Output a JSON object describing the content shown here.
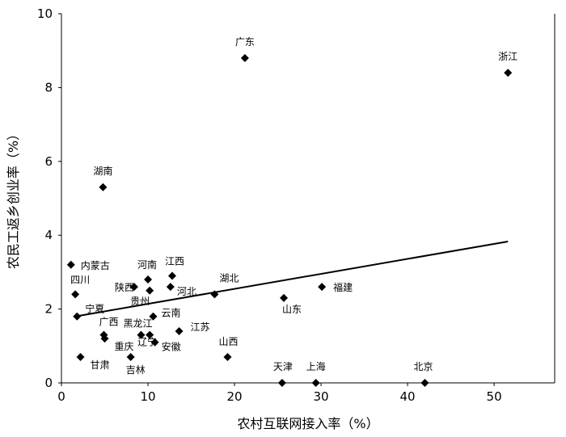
{
  "chart_data": {
    "type": "scatter",
    "xlabel": "农村互联网接入率（%）",
    "ylabel": "农民工返乡创业率（%）",
    "xlim": [
      0,
      57
    ],
    "ylim": [
      0,
      10
    ],
    "xticks": [
      0,
      10,
      20,
      30,
      40,
      50
    ],
    "yticks": [
      0,
      2,
      4,
      6,
      8,
      10
    ],
    "grid": false,
    "legend": "none",
    "points": [
      {
        "name": "广东",
        "x": 21.2,
        "y": 8.8
      },
      {
        "name": "浙江",
        "x": 51.6,
        "y": 8.4
      },
      {
        "name": "湖南",
        "x": 4.8,
        "y": 5.3
      },
      {
        "name": "内蒙古",
        "x": 1.1,
        "y": 3.2
      },
      {
        "name": "四川",
        "x": 1.6,
        "y": 2.4
      },
      {
        "name": "宁夏",
        "x": 1.8,
        "y": 1.8
      },
      {
        "name": "陕西",
        "x": 8.4,
        "y": 2.6
      },
      {
        "name": "河南",
        "x": 10.0,
        "y": 2.8
      },
      {
        "name": "江西",
        "x": 12.8,
        "y": 2.9
      },
      {
        "name": "贵州",
        "x": 10.2,
        "y": 2.5
      },
      {
        "name": "河北",
        "x": 12.6,
        "y": 2.6
      },
      {
        "name": "湖北",
        "x": 17.7,
        "y": 2.4
      },
      {
        "name": "云南",
        "x": 10.6,
        "y": 1.8
      },
      {
        "name": "广西",
        "x": 4.9,
        "y": 1.3
      },
      {
        "name": "重庆",
        "x": 5.0,
        "y": 1.2
      },
      {
        "name": "黑龙江",
        "x": 9.2,
        "y": 1.3
      },
      {
        "name": "辽宁",
        "x": 10.2,
        "y": 1.3
      },
      {
        "name": "安徽",
        "x": 10.8,
        "y": 1.1
      },
      {
        "name": "江苏",
        "x": 13.6,
        "y": 1.4
      },
      {
        "name": "甘肃",
        "x": 2.2,
        "y": 0.7
      },
      {
        "name": "吉林",
        "x": 8.0,
        "y": 0.7
      },
      {
        "name": "山西",
        "x": 19.2,
        "y": 0.7
      },
      {
        "name": "山东",
        "x": 25.7,
        "y": 2.3
      },
      {
        "name": "福建",
        "x": 30.1,
        "y": 2.6
      },
      {
        "name": "天津",
        "x": 25.5,
        "y": 0.0
      },
      {
        "name": "上海",
        "x": 29.4,
        "y": 0.0
      },
      {
        "name": "北京",
        "x": 42.0,
        "y": 0.0
      }
    ],
    "trendline": {
      "x": [
        1.6,
        51.6
      ],
      "y": [
        1.8,
        3.83
      ]
    }
  }
}
